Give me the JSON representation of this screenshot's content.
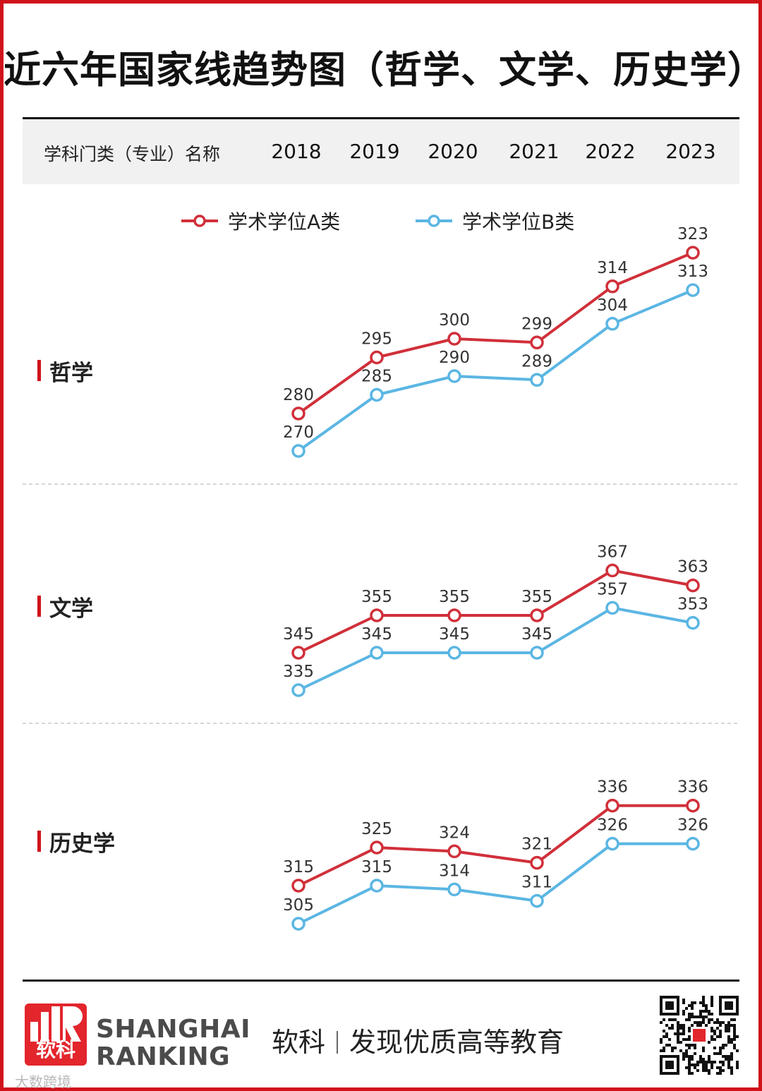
{
  "title": "近六年国家线趋势图（哲学、文学、历史学）",
  "header": {
    "label": "学科门类（专业）名称",
    "years": [
      "2018",
      "2019",
      "2020",
      "2021",
      "2022",
      "2023"
    ]
  },
  "colors": {
    "series_a": "#d0303a",
    "series_b": "#5bb6e3",
    "accent": "#d0121b"
  },
  "chart_data": {
    "type": "line",
    "x": [
      "2018",
      "2019",
      "2020",
      "2021",
      "2022",
      "2023"
    ],
    "legend": [
      "学术学位A类",
      "学术学位B类"
    ],
    "legend_position": "top",
    "grid": false,
    "panels": [
      {
        "category": "哲学",
        "series": [
          {
            "name": "学术学位A类",
            "values": [
              280,
              295,
              300,
              299,
              314,
              323
            ]
          },
          {
            "name": "学术学位B类",
            "values": [
              270,
              285,
              290,
              289,
              304,
              313
            ]
          }
        ]
      },
      {
        "category": "文学",
        "series": [
          {
            "name": "学术学位A类",
            "values": [
              345,
              355,
              355,
              355,
              367,
              363
            ]
          },
          {
            "name": "学术学位B类",
            "values": [
              335,
              345,
              345,
              345,
              357,
              353
            ]
          }
        ]
      },
      {
        "category": "历史学",
        "series": [
          {
            "name": "学术学位A类",
            "values": [
              315,
              325,
              324,
              321,
              336,
              336
            ]
          },
          {
            "name": "学术学位B类",
            "values": [
              305,
              315,
              314,
              311,
              326,
              326
            ]
          }
        ]
      }
    ]
  },
  "footer": {
    "logo_text": "软科",
    "brand_line1": "SHANGHAI",
    "brand_line2": "RANKING",
    "slogan_left": "软科",
    "slogan_right": "发现优质高等教育",
    "qr_icon": "qr-code-icon"
  },
  "watermark": "大数跨境"
}
